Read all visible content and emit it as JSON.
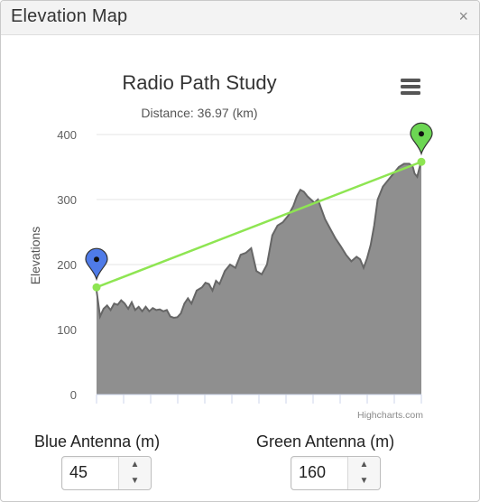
{
  "window": {
    "title": "Elevation Map",
    "close_glyph": "×"
  },
  "chart_data": {
    "type": "area",
    "title": "Radio Path Study",
    "subtitle": "Distance: 36.97 (km)",
    "ylabel": "Elevations",
    "xlabel": "",
    "ylim": [
      0,
      400
    ],
    "yticks": [
      0,
      100,
      200,
      300,
      400
    ],
    "grid": true,
    "credits": "Highcharts.com",
    "menu_icon": "hamburger-menu-icon",
    "xlim": [
      0,
      36.97
    ],
    "x_unit": "km",
    "series": [
      {
        "kind": "area",
        "color": "#8f8f8f",
        "line_color": "#666666",
        "x": [
          0,
          0.4,
          0.8,
          1.2,
          1.6,
          2.0,
          2.4,
          2.8,
          3.2,
          3.6,
          4.0,
          4.4,
          4.8,
          5.2,
          5.6,
          6.0,
          6.4,
          6.8,
          7.2,
          7.6,
          8.0,
          8.4,
          8.8,
          9.2,
          9.6,
          10.0,
          10.4,
          10.8,
          11.4,
          12.0,
          12.4,
          12.8,
          13.2,
          13.6,
          14.0,
          14.6,
          15.2,
          15.8,
          16.4,
          17.0,
          17.6,
          18.2,
          18.8,
          19.4,
          20.0,
          20.6,
          21.2,
          21.8,
          22.4,
          22.8,
          23.2,
          23.6,
          24.0,
          24.4,
          24.8,
          25.2,
          25.6,
          26.0,
          26.6,
          27.2,
          27.8,
          28.4,
          29.0,
          29.6,
          30.0,
          30.4,
          30.8,
          31.2,
          31.6,
          32.0,
          32.6,
          33.2,
          33.8,
          34.4,
          35.0,
          35.6,
          36.0,
          36.2,
          36.5,
          36.97
        ],
        "values": [
          160,
          120,
          132,
          137,
          130,
          140,
          138,
          145,
          140,
          132,
          142,
          130,
          135,
          128,
          135,
          128,
          133,
          130,
          131,
          128,
          130,
          120,
          118,
          119,
          125,
          140,
          148,
          140,
          160,
          165,
          172,
          170,
          160,
          175,
          170,
          190,
          200,
          195,
          215,
          218,
          225,
          190,
          185,
          200,
          245,
          260,
          265,
          275,
          290,
          305,
          315,
          312,
          305,
          300,
          295,
          300,
          285,
          270,
          255,
          240,
          228,
          215,
          205,
          212,
          208,
          195,
          210,
          230,
          260,
          300,
          320,
          330,
          340,
          350,
          355,
          355,
          350,
          340,
          335,
          360
        ]
      },
      {
        "kind": "line",
        "name": "",
        "color": "#8ee552",
        "x": [
          0,
          36.97
        ],
        "values": [
          165,
          358
        ]
      }
    ],
    "markers": [
      {
        "position": "start",
        "color": "#4f7be8",
        "icon": "blue-antenna-pin-icon",
        "x": 0,
        "y": 165
      },
      {
        "position": "end",
        "color": "#6cd653",
        "icon": "green-antenna-pin-icon",
        "x": 36.97,
        "y": 358
      }
    ]
  },
  "controls": {
    "blue_antenna": {
      "label": "Blue Antenna (m)",
      "value": "45",
      "up": "▲",
      "down": "▼"
    },
    "green_antenna": {
      "label": "Green Antenna (m)",
      "value": "160",
      "up": "▲",
      "down": "▼"
    }
  }
}
